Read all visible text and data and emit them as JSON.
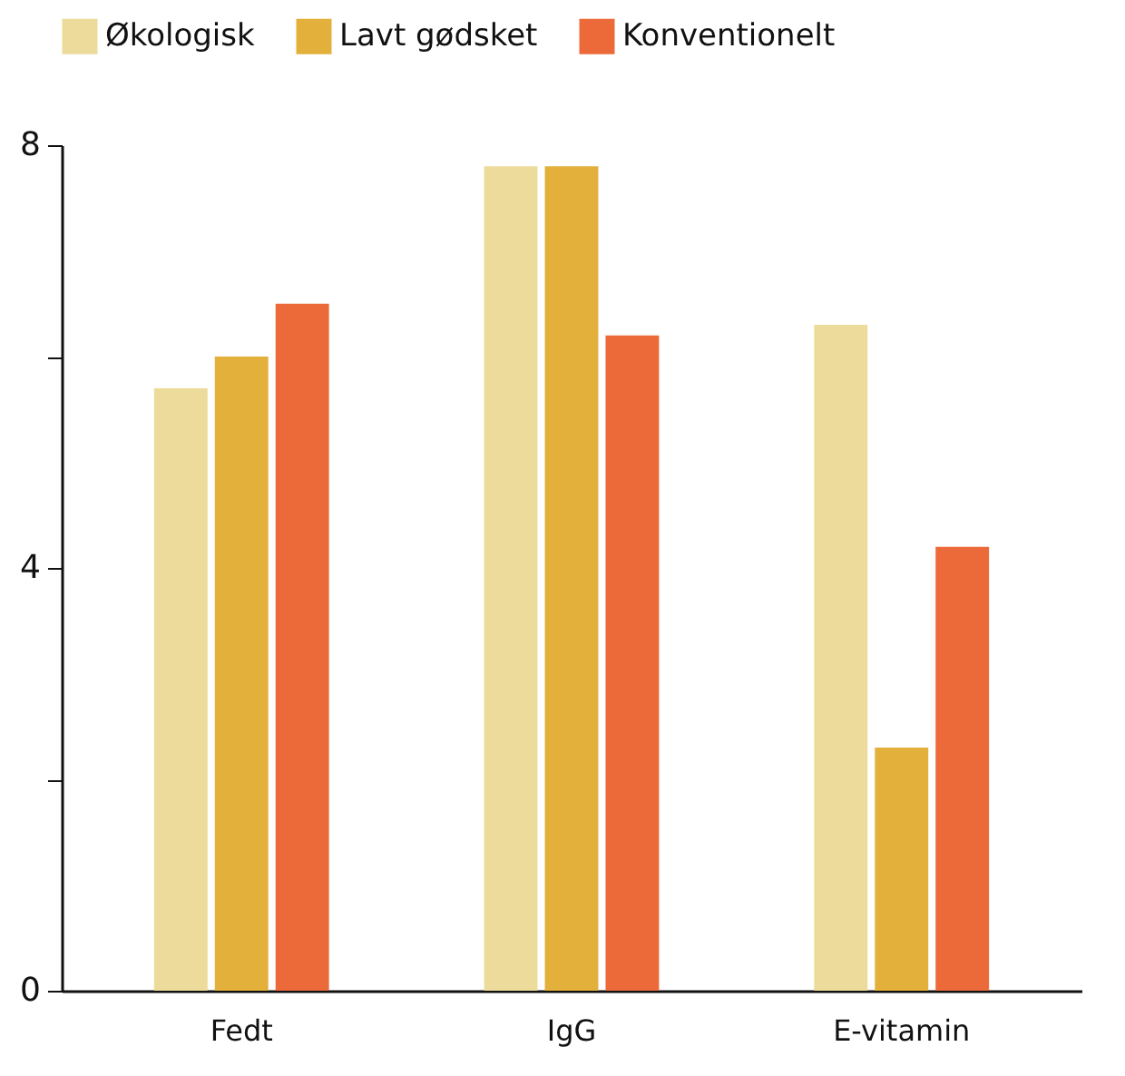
{
  "chart_data": {
    "type": "bar",
    "categories": [
      "Fedt",
      "IgG",
      "E-vitamin"
    ],
    "series": [
      {
        "name": "Økologisk",
        "color": "#ecdb9a",
        "values": [
          5.7,
          7.8,
          6.3
        ]
      },
      {
        "name": "Lavt gødsket",
        "color": "#e3b03b",
        "values": [
          6.0,
          7.8,
          2.3
        ]
      },
      {
        "name": "Konventionelt",
        "color": "#ec6a3a",
        "values": [
          6.5,
          6.2,
          4.2
        ]
      }
    ],
    "ylim": [
      0,
      8
    ],
    "yticks": [
      0,
      {
        "value": 2,
        "label": null
      },
      4,
      {
        "value": 6,
        "label": null
      },
      8
    ],
    "grid": false,
    "legend": "top left"
  }
}
